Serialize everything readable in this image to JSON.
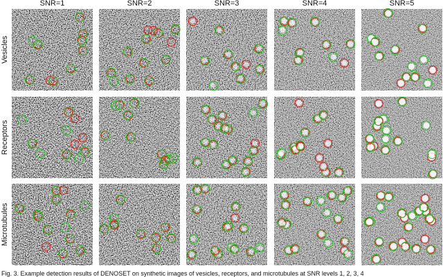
{
  "columns": [
    "SNR=1",
    "SNR=2",
    "SNR=3",
    "SNR=4",
    "SNR=5"
  ],
  "rows": [
    "Vesicles",
    "Receptors",
    "Microtubules"
  ],
  "caption": "Fig. 3.  Example detection results of DENOSET on synthetic images of vesicles, receptors, and microtubules at SNR levels 1, 2, 3, 4"
}
